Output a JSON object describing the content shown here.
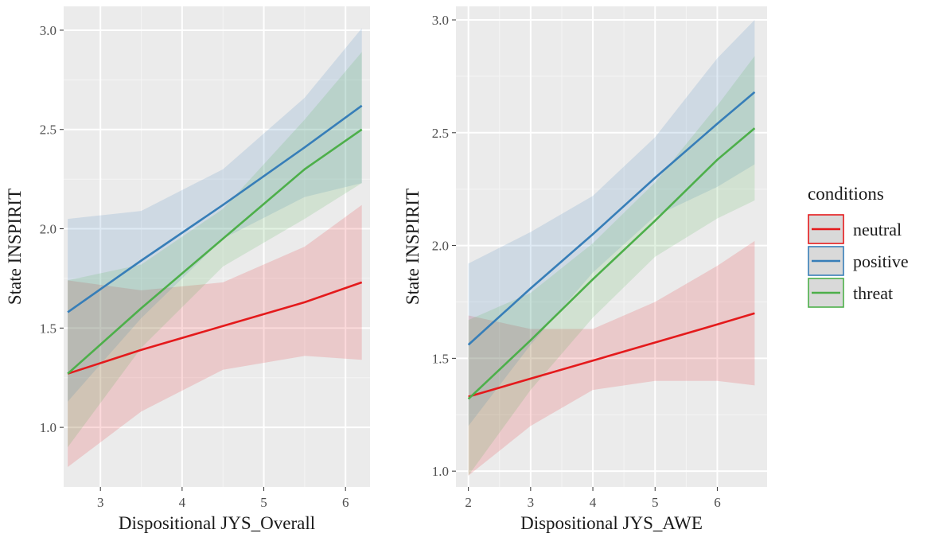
{
  "chart_data": [
    {
      "type": "line",
      "xlabel": "Dispositional JYS_Overall",
      "ylabel": "State INSPIRIT",
      "xlim": [
        2.55,
        6.3
      ],
      "ylim": [
        0.7,
        3.12
      ],
      "xticks": [
        3,
        4,
        5,
        6
      ],
      "yticks": [
        1.0,
        1.5,
        2.0,
        2.5,
        3.0
      ],
      "xtick_labels": [
        "3",
        "4",
        "5",
        "6"
      ],
      "ytick_labels": [
        "1.0",
        "1.5",
        "2.0",
        "2.5",
        "3.0"
      ],
      "x": [
        2.6,
        3.5,
        4.5,
        5.5,
        6.2
      ],
      "series": [
        {
          "name": "neutral",
          "color": "#e41a1c",
          "values": [
            1.27,
            1.39,
            1.51,
            1.63,
            1.73
          ],
          "lower": [
            0.8,
            1.08,
            1.29,
            1.36,
            1.34
          ],
          "upper": [
            1.74,
            1.69,
            1.73,
            1.91,
            2.12
          ]
        },
        {
          "name": "positive",
          "color": "#377eb8",
          "values": [
            1.58,
            1.84,
            2.12,
            2.41,
            2.62
          ],
          "lower": [
            1.13,
            1.55,
            1.95,
            2.16,
            2.23
          ],
          "upper": [
            2.05,
            2.09,
            2.3,
            2.66,
            3.01
          ]
        },
        {
          "name": "threat",
          "color": "#4daf4a",
          "values": [
            1.27,
            1.6,
            1.95,
            2.3,
            2.5
          ],
          "lower": [
            0.9,
            1.4,
            1.81,
            2.05,
            2.23
          ],
          "upper": [
            1.74,
            1.82,
            2.1,
            2.55,
            2.89
          ]
        }
      ]
    },
    {
      "type": "line",
      "xlabel": "Dispositional JYS_AWE",
      "ylabel": "State INSPIRIT",
      "xlim": [
        1.8,
        6.8
      ],
      "ylim": [
        0.93,
        3.06
      ],
      "xticks": [
        2,
        3,
        4,
        5,
        6
      ],
      "yticks": [
        1.0,
        1.5,
        2.0,
        2.5,
        3.0
      ],
      "xtick_labels": [
        "2",
        "3",
        "4",
        "5",
        "6"
      ],
      "ytick_labels": [
        "1.0",
        "1.5",
        "2.0",
        "2.5",
        "3.0"
      ],
      "x": [
        2.0,
        3.0,
        4.0,
        5.0,
        6.0,
        6.6
      ],
      "series": [
        {
          "name": "neutral",
          "color": "#e41a1c",
          "values": [
            1.33,
            1.41,
            1.49,
            1.57,
            1.65,
            1.7
          ],
          "lower": [
            0.98,
            1.2,
            1.36,
            1.4,
            1.4,
            1.38
          ],
          "upper": [
            1.69,
            1.63,
            1.63,
            1.75,
            1.91,
            2.02
          ]
        },
        {
          "name": "positive",
          "color": "#377eb8",
          "values": [
            1.56,
            1.81,
            2.05,
            2.3,
            2.54,
            2.68
          ],
          "lower": [
            1.2,
            1.56,
            1.88,
            2.13,
            2.26,
            2.36
          ],
          "upper": [
            1.92,
            2.06,
            2.22,
            2.48,
            2.83,
            3.0
          ]
        },
        {
          "name": "threat",
          "color": "#4daf4a",
          "values": [
            1.32,
            1.58,
            1.85,
            2.11,
            2.38,
            2.52
          ],
          "lower": [
            0.98,
            1.36,
            1.68,
            1.95,
            2.12,
            2.2
          ],
          "upper": [
            1.67,
            1.79,
            2.01,
            2.28,
            2.62,
            2.84
          ]
        }
      ]
    }
  ],
  "legend": {
    "title": "conditions",
    "items": [
      {
        "label": "neutral",
        "color": "#e41a1c"
      },
      {
        "label": "positive",
        "color": "#377eb8"
      },
      {
        "label": "threat",
        "color": "#4daf4a"
      }
    ]
  }
}
